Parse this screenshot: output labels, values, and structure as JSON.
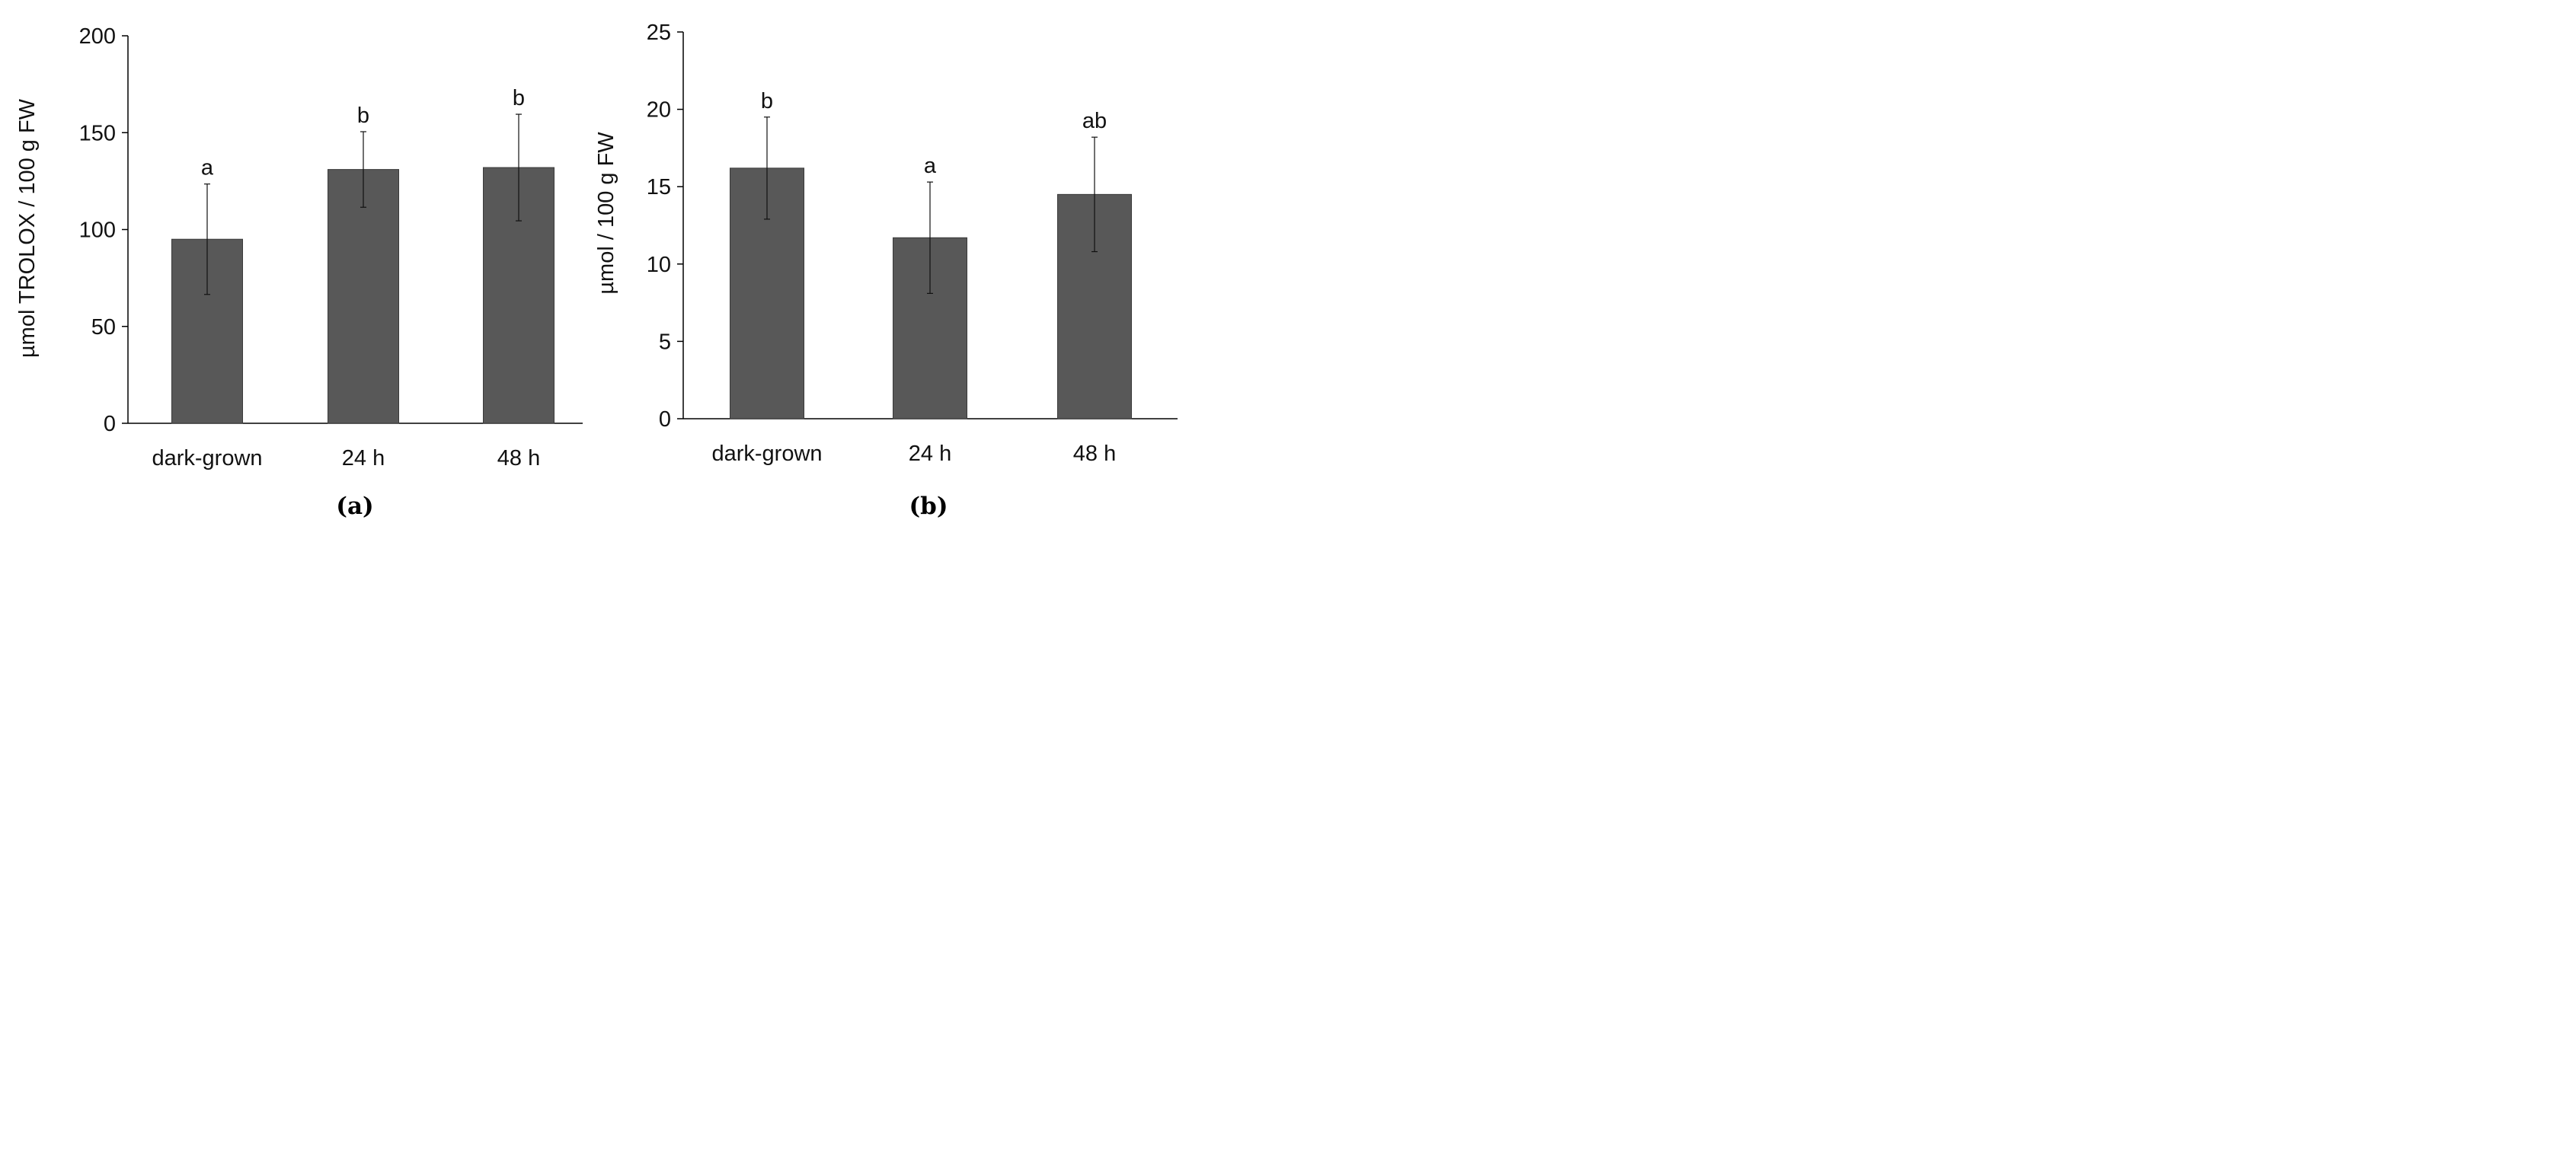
{
  "chart_data": [
    {
      "type": "bar",
      "panel_label": "(a)",
      "title": "",
      "xlabel": "",
      "ylabel": "µmol TROLOX / 100 g FW",
      "categories": [
        "dark-grown",
        "24 h",
        "48 h"
      ],
      "values": [
        95,
        131,
        132
      ],
      "errors": [
        28.5,
        19.5,
        27.5
      ],
      "significance": [
        "a",
        "b",
        "b"
      ],
      "ylim": [
        0,
        200
      ],
      "yticks": [
        0,
        50,
        100,
        150,
        200
      ],
      "bar_color": "#585858",
      "grid": false
    },
    {
      "type": "bar",
      "panel_label": "(b)",
      "title": "",
      "xlabel": "",
      "ylabel": "µmol / 100 g FW",
      "categories": [
        "dark-grown",
        "24 h",
        "48 h"
      ],
      "values": [
        16.2,
        11.7,
        14.5
      ],
      "errors": [
        3.3,
        3.6,
        3.7
      ],
      "significance": [
        "b",
        "a",
        "ab"
      ],
      "ylim": [
        0,
        25
      ],
      "yticks": [
        0,
        5,
        10,
        15,
        20,
        25
      ],
      "bar_color": "#585858",
      "grid": false
    }
  ]
}
